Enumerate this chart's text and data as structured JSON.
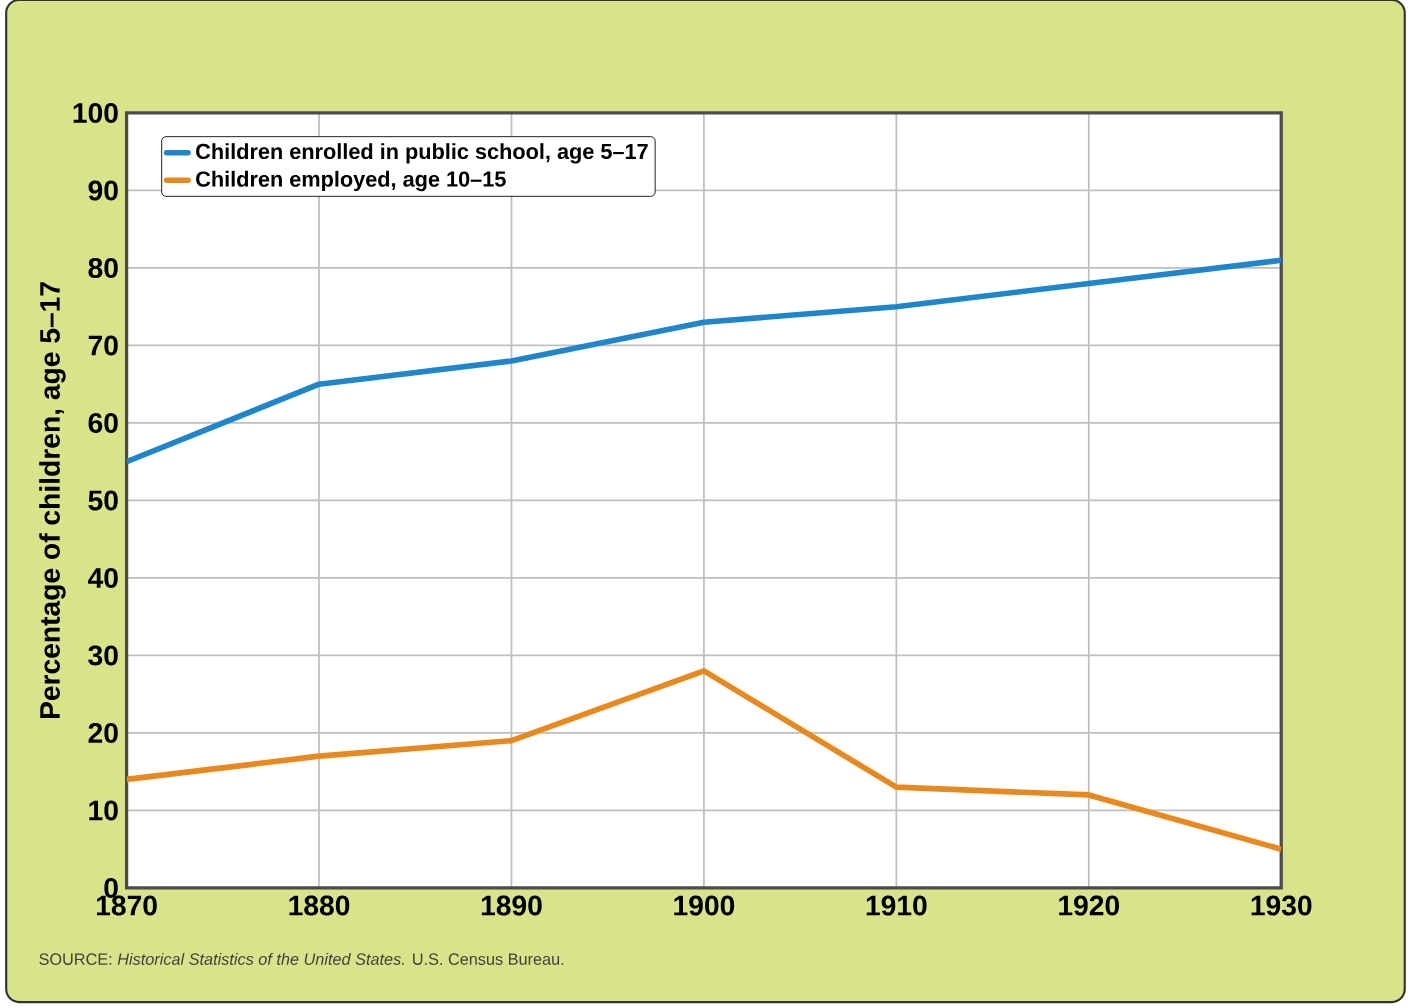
{
  "chart_data": {
    "type": "line",
    "ylabel": "Percentage of children, age 5–17",
    "x": [
      1870,
      1880,
      1890,
      1900,
      1910,
      1920,
      1930
    ],
    "series": [
      {
        "name": "Children enrolled in public school, age 5–17",
        "color": "#1f86cc",
        "values": [
          55,
          65,
          68,
          73,
          75,
          78,
          81
        ]
      },
      {
        "name": "Children employed, age 10–15",
        "color": "#e8891e",
        "values": [
          14,
          17,
          19,
          28,
          13,
          12,
          5
        ]
      }
    ],
    "xlim": [
      1870,
      1930
    ],
    "xticks": [
      1870,
      1880,
      1890,
      1900,
      1910,
      1920,
      1930
    ],
    "ylim": [
      0,
      100
    ],
    "yticks": [
      0,
      10,
      20,
      30,
      40,
      50,
      60,
      70,
      80,
      90,
      100
    ],
    "grid": true,
    "legend": "top left",
    "marker": "none",
    "line_style": "solid",
    "annotations": [
      "SOURCE: *Historical Statistics of the United States.* U.S. Census Bureau."
    ]
  }
}
